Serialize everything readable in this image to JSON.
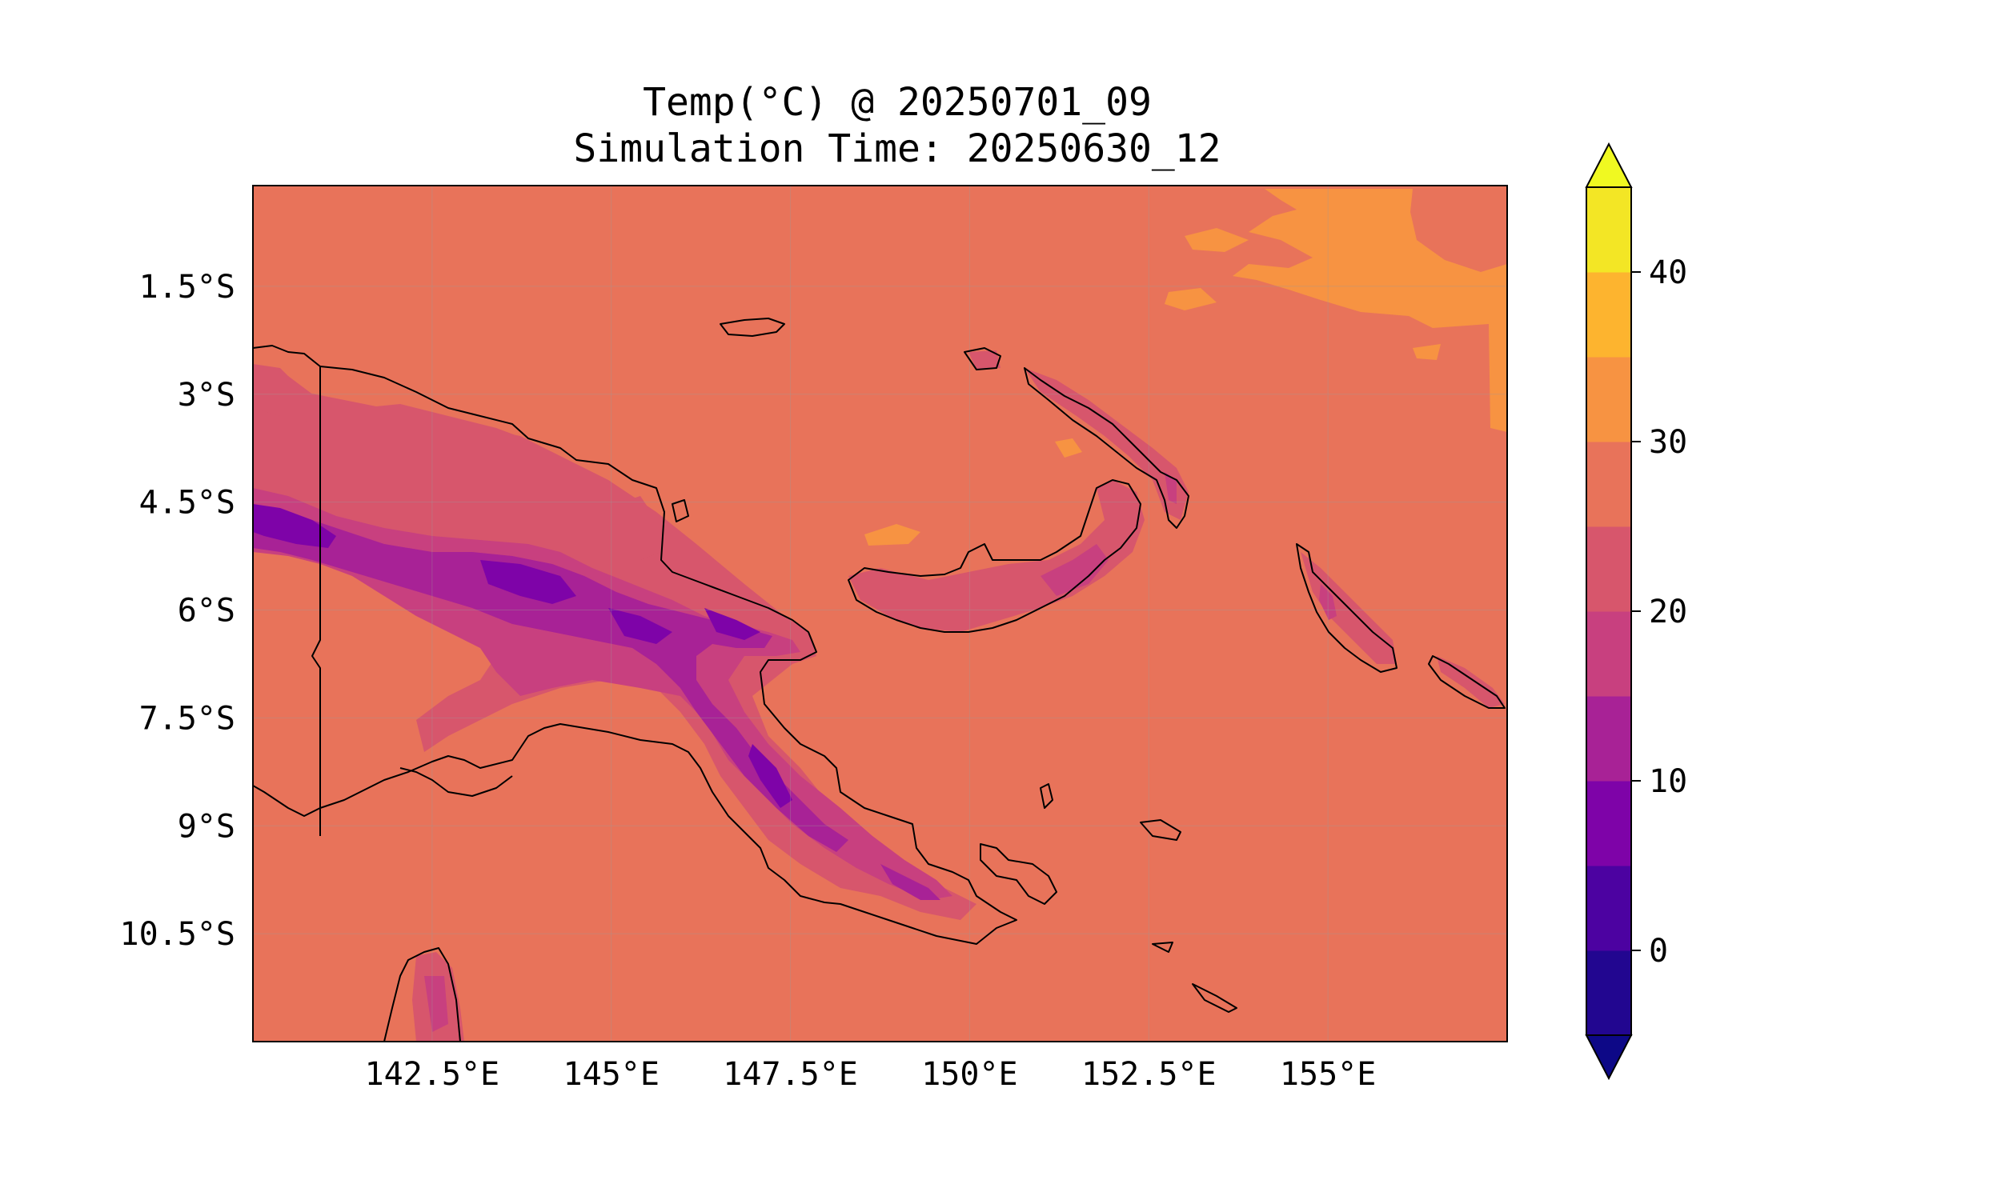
{
  "title": {
    "line1": "Temp(°C) @ 20250701_09",
    "line2": "Simulation Time: 20250630_12"
  },
  "map": {
    "lon_range": [
      140.0,
      157.5
    ],
    "lat_range": [
      -12.0,
      -0.1
    ],
    "x_ticks": [
      {
        "value": 142.5,
        "label": "142.5°E"
      },
      {
        "value": 145.0,
        "label": "145°E"
      },
      {
        "value": 147.5,
        "label": "147.5°E"
      },
      {
        "value": 150.0,
        "label": "150°E"
      },
      {
        "value": 152.5,
        "label": "152.5°E"
      },
      {
        "value": 155.0,
        "label": "155°E"
      }
    ],
    "y_ticks": [
      {
        "value": -1.5,
        "label": "1.5°S"
      },
      {
        "value": -3.0,
        "label": "3°S"
      },
      {
        "value": -4.5,
        "label": "4.5°S"
      },
      {
        "value": -6.0,
        "label": "6°S"
      },
      {
        "value": -7.5,
        "label": "7.5°S"
      },
      {
        "value": -9.0,
        "label": "9°S"
      },
      {
        "value": -10.5,
        "label": "10.5°S"
      }
    ],
    "background_level_color": "#e8735a",
    "gridlines": true
  },
  "colorbar": {
    "min": -5,
    "max": 45,
    "extend": "both",
    "levels": [
      {
        "from": -5,
        "to": 0,
        "color": "#220690"
      },
      {
        "from": 0,
        "to": 5,
        "color": "#4c02a1"
      },
      {
        "from": 5,
        "to": 10,
        "color": "#7e03a8"
      },
      {
        "from": 10,
        "to": 15,
        "color": "#a82296"
      },
      {
        "from": 15,
        "to": 20,
        "color": "#c8407f"
      },
      {
        "from": 20,
        "to": 25,
        "color": "#d7566c"
      },
      {
        "from": 25,
        "to": 30,
        "color": "#e8735a"
      },
      {
        "from": 30,
        "to": 35,
        "color": "#f79342"
      },
      {
        "from": 35,
        "to": 40,
        "color": "#fdb42f"
      },
      {
        "from": 40,
        "to": 45,
        "color": "#f3e625"
      }
    ],
    "under_color": "#0d0887",
    "over_color": "#f0f921",
    "ticks": [
      {
        "value": 0,
        "label": "0"
      },
      {
        "value": 10,
        "label": "10"
      },
      {
        "value": 20,
        "label": "20"
      },
      {
        "value": 30,
        "label": "30"
      },
      {
        "value": 40,
        "label": "40"
      }
    ]
  }
}
